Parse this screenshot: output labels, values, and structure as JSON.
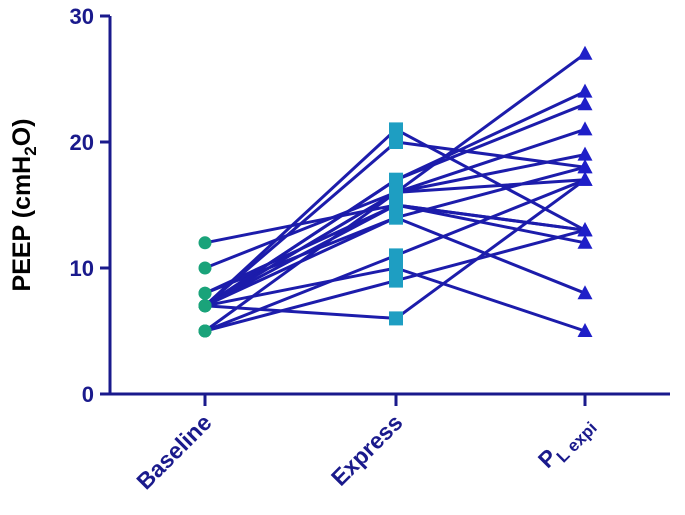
{
  "chart_data": {
    "type": "line",
    "title": "",
    "xlabel": "",
    "ylabel": {
      "prefix": "PEEP (cmH",
      "subscript": "2",
      "suffix": "O)"
    },
    "ylim": [
      0,
      30
    ],
    "yticks": [
      "0",
      "10",
      "20",
      "30"
    ],
    "categories": [
      {
        "main": "Baseline",
        "sub": ""
      },
      {
        "main": "Express",
        "sub": ""
      },
      {
        "main": "P",
        "sub": "L expi"
      }
    ],
    "grid": false,
    "legend": "none",
    "colors": {
      "axis": "#1a1a8c",
      "line": "#1c1cab",
      "baseline_marker": "#1aa37a",
      "express_marker": "#1e9ec2",
      "pl_marker": "#1f1fc8"
    },
    "markers": [
      "circle",
      "square",
      "triangle"
    ],
    "series": [
      {
        "values": [
          12,
          15,
          13
        ]
      },
      {
        "values": [
          10,
          16,
          17
        ]
      },
      {
        "values": [
          8,
          15,
          12
        ]
      },
      {
        "values": [
          8,
          14,
          18
        ]
      },
      {
        "values": [
          7,
          21,
          13
        ]
      },
      {
        "values": [
          7,
          16,
          27
        ]
      },
      {
        "values": [
          7,
          17,
          24
        ]
      },
      {
        "values": [
          7,
          17,
          23
        ]
      },
      {
        "values": [
          7,
          16,
          21
        ]
      },
      {
        "values": [
          7,
          20,
          18
        ]
      },
      {
        "values": [
          7,
          15,
          13
        ]
      },
      {
        "values": [
          7,
          14,
          8
        ]
      },
      {
        "values": [
          7,
          10,
          5
        ]
      },
      {
        "values": [
          5,
          16,
          19
        ]
      },
      {
        "values": [
          5,
          11,
          17
        ]
      },
      {
        "values": [
          5,
          9,
          13
        ]
      },
      {
        "values": [
          7,
          6,
          17
        ]
      }
    ]
  }
}
